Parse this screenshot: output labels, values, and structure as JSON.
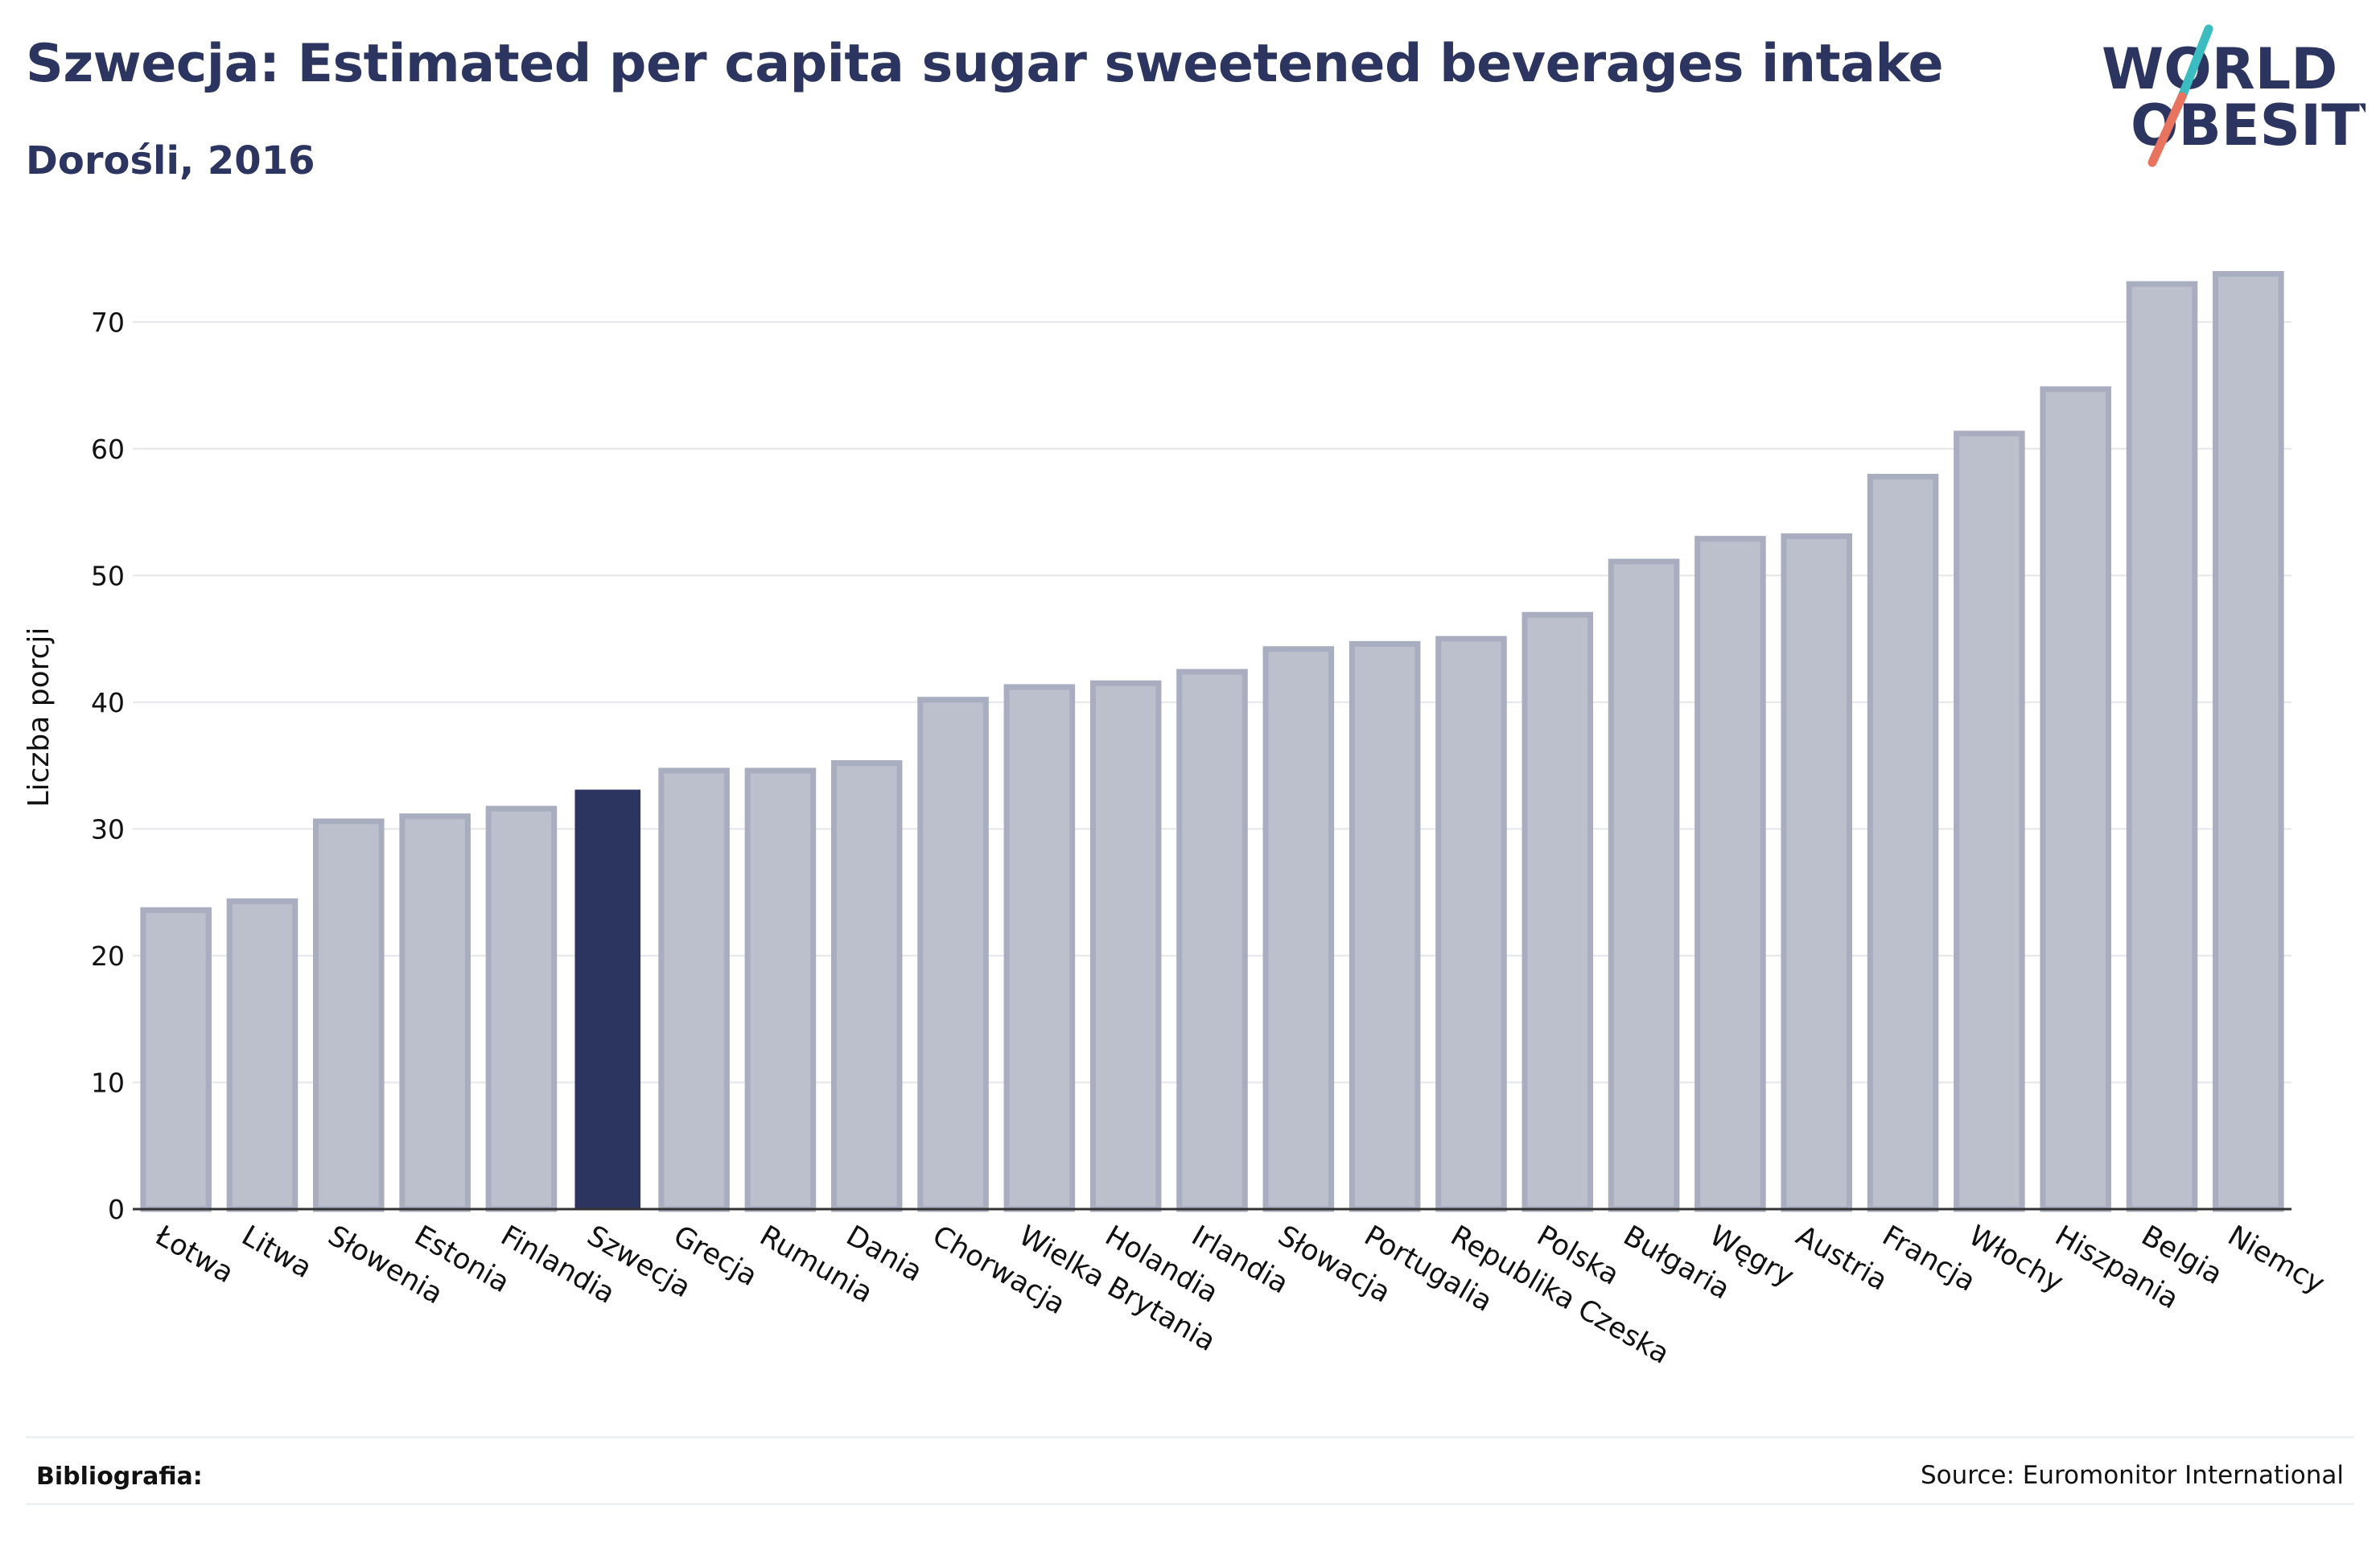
{
  "header": {
    "title": "Szwecja: Estimated per capita sugar sweetened beverages intake",
    "subtitle": "Dorośli, 2016"
  },
  "logo": {
    "line1": "WORLD",
    "line2": "OBESITY"
  },
  "footer": {
    "bibliography_label": "Bibliografia:",
    "source": "Source: Euromonitor International"
  },
  "colors": {
    "bar_fill": "#bcbfcc",
    "bar_stroke": "#a8adc0",
    "highlight": "#2c3560",
    "text_dark": "#2c3560",
    "logo_teal": "#3bbcc0",
    "logo_coral": "#e8735e"
  },
  "chart_data": {
    "type": "bar",
    "title": "Szwecja: Estimated per capita sugar sweetened beverages intake",
    "subtitle": "Dorośli, 2016",
    "xlabel": "",
    "ylabel": "Liczba porcji",
    "ylim": [
      0,
      77
    ],
    "yticks": [
      0,
      10,
      20,
      30,
      40,
      50,
      60,
      70
    ],
    "grid": true,
    "highlight": "Szwecja",
    "categories": [
      "Łotwa",
      "Litwa",
      "Słowenia",
      "Estonia",
      "Finlandia",
      "Szwecja",
      "Grecja",
      "Rumunia",
      "Dania",
      "Chorwacja",
      "Wielka Brytania",
      "Holandia",
      "Irlandia",
      "Słowacja",
      "Portugalia",
      "Republika Czeska",
      "Polska",
      "Bułgaria",
      "Węgry",
      "Austria",
      "Francja",
      "Włochy",
      "Hiszpania",
      "Belgia",
      "Niemcy"
    ],
    "values": [
      23.6,
      24.3,
      30.6,
      31.0,
      31.6,
      33.1,
      34.6,
      34.6,
      35.2,
      40.2,
      41.2,
      41.5,
      42.4,
      44.2,
      44.6,
      45.0,
      46.9,
      51.1,
      52.9,
      53.1,
      57.8,
      61.2,
      64.7,
      73.0,
      73.8
    ]
  }
}
